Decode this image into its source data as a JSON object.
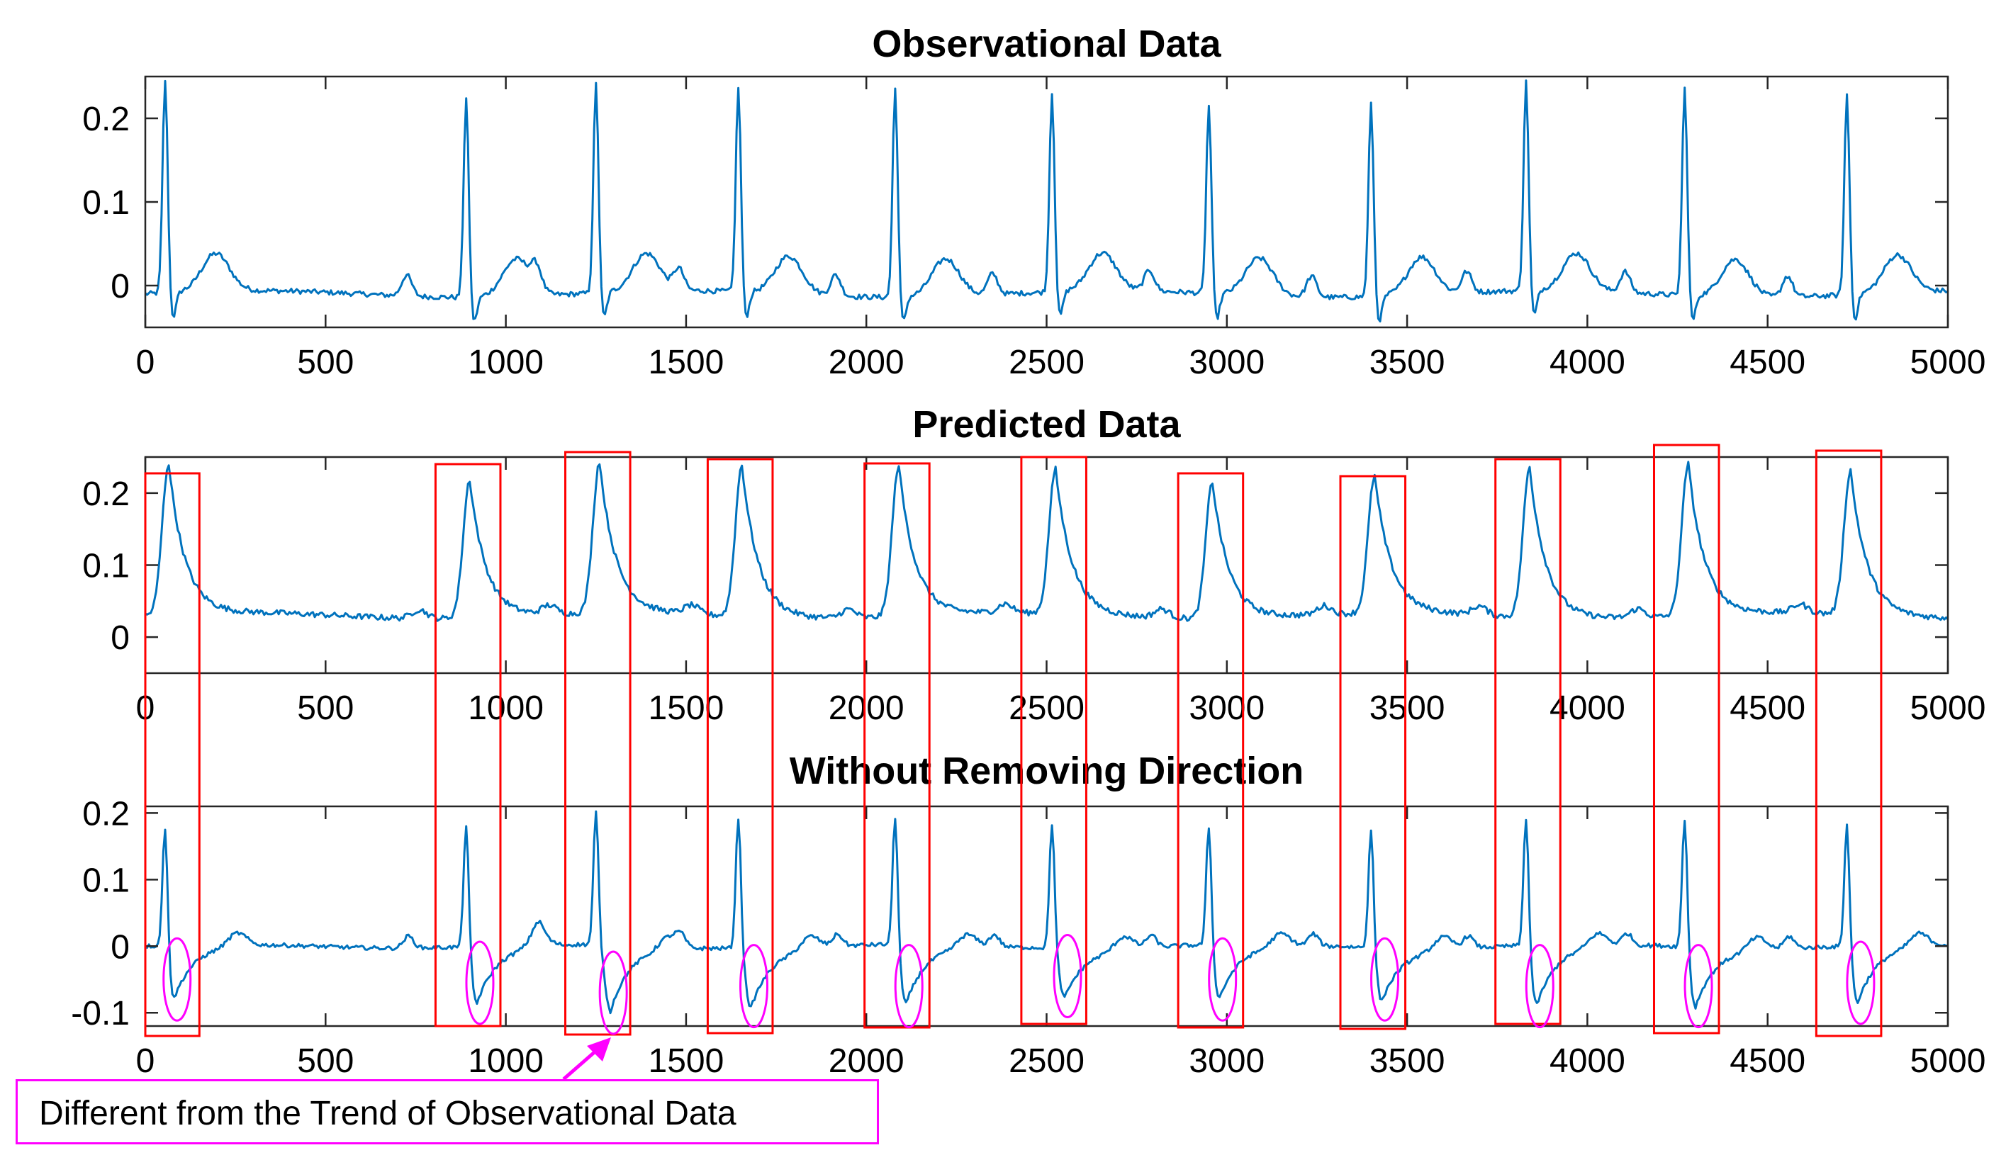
{
  "colors": {
    "line": "#0072BD",
    "box": "#ff0000",
    "ellipse": "#ff00ff",
    "callout": "#ff00ff"
  },
  "callout": {
    "text": "Different from the Trend of Observational Data"
  },
  "beats": [
    55,
    890,
    1250,
    1645,
    2080,
    2515,
    2950,
    3400,
    3830,
    4270,
    4720
  ],
  "chart_data": [
    {
      "type": "line",
      "title": "Observational Data",
      "xlim": [
        0,
        5000
      ],
      "ylim": [
        -0.05,
        0.25
      ],
      "xticks": [
        0,
        500,
        1000,
        1500,
        2000,
        2500,
        3000,
        3500,
        4000,
        4500,
        5000
      ],
      "yticks": [
        0,
        0.1,
        0.2
      ],
      "ytick_labels": [
        "0",
        "0.1",
        "0.2"
      ],
      "series": [
        {
          "name": "Observational Data",
          "peaks": [
            {
              "x": 55,
              "y": 0.245
            },
            {
              "x": 890,
              "y": 0.228
            },
            {
              "x": 1250,
              "y": 0.24
            },
            {
              "x": 1645,
              "y": 0.235
            },
            {
              "x": 2080,
              "y": 0.24
            },
            {
              "x": 2515,
              "y": 0.228
            },
            {
              "x": 2950,
              "y": 0.215
            },
            {
              "x": 3400,
              "y": 0.22
            },
            {
              "x": 3830,
              "y": 0.24
            },
            {
              "x": 4270,
              "y": 0.238
            },
            {
              "x": 4720,
              "y": 0.23
            }
          ],
          "baseline": -0.01,
          "t_wave_amplitude": 0.045,
          "min": -0.05
        }
      ]
    },
    {
      "type": "line",
      "title": "Predicted Data",
      "xlim": [
        0,
        5000
      ],
      "ylim": [
        -0.05,
        0.25
      ],
      "xticks": [
        0,
        500,
        1000,
        1500,
        2000,
        2500,
        3000,
        3500,
        4000,
        4500,
        5000
      ],
      "yticks": [
        0,
        0.1,
        0.2
      ],
      "ytick_labels": [
        "0",
        "0.1",
        "0.2"
      ],
      "series": [
        {
          "name": "Predicted Data",
          "peaks": [
            {
              "x": 65,
              "y": 0.24
            },
            {
              "x": 900,
              "y": 0.222
            },
            {
              "x": 1260,
              "y": 0.24
            },
            {
              "x": 1655,
              "y": 0.24
            },
            {
              "x": 2090,
              "y": 0.24
            },
            {
              "x": 2525,
              "y": 0.23
            },
            {
              "x": 2960,
              "y": 0.22
            },
            {
              "x": 3410,
              "y": 0.22
            },
            {
              "x": 3840,
              "y": 0.238
            },
            {
              "x": 4280,
              "y": 0.24
            },
            {
              "x": 4730,
              "y": 0.23
            }
          ],
          "baseline": 0.03
        }
      ]
    },
    {
      "type": "line",
      "title": "Without Removing Direction",
      "xlim": [
        0,
        5000
      ],
      "ylim": [
        -0.12,
        0.21
      ],
      "xticks": [
        0,
        500,
        1000,
        1500,
        2000,
        2500,
        3000,
        3500,
        4000,
        4500,
        5000
      ],
      "yticks": [
        -0.1,
        0,
        0.1,
        0.2
      ],
      "ytick_labels": [
        "-0.1",
        "0",
        "0.1",
        "0.2"
      ],
      "series": [
        {
          "name": "Without Removing Direction",
          "peaks": [
            {
              "x": 55,
              "y": 0.19
            },
            {
              "x": 890,
              "y": 0.19
            },
            {
              "x": 1250,
              "y": 0.2
            },
            {
              "x": 1645,
              "y": 0.2
            },
            {
              "x": 2080,
              "y": 0.2
            },
            {
              "x": 2515,
              "y": 0.19
            },
            {
              "x": 2950,
              "y": 0.185
            },
            {
              "x": 3400,
              "y": 0.185
            },
            {
              "x": 3830,
              "y": 0.2
            },
            {
              "x": 4270,
              "y": 0.2
            },
            {
              "x": 4720,
              "y": 0.19
            }
          ],
          "troughs": [
            {
              "x": 80,
              "y": -0.08
            },
            {
              "x": 920,
              "y": -0.085
            },
            {
              "x": 1290,
              "y": -0.1
            },
            {
              "x": 1680,
              "y": -0.09
            },
            {
              "x": 2110,
              "y": -0.09
            },
            {
              "x": 2550,
              "y": -0.075
            },
            {
              "x": 2980,
              "y": -0.08
            },
            {
              "x": 3430,
              "y": -0.08
            },
            {
              "x": 3860,
              "y": -0.09
            },
            {
              "x": 4300,
              "y": -0.09
            },
            {
              "x": 4750,
              "y": -0.085
            }
          ],
          "baseline": 0.0
        }
      ]
    }
  ]
}
